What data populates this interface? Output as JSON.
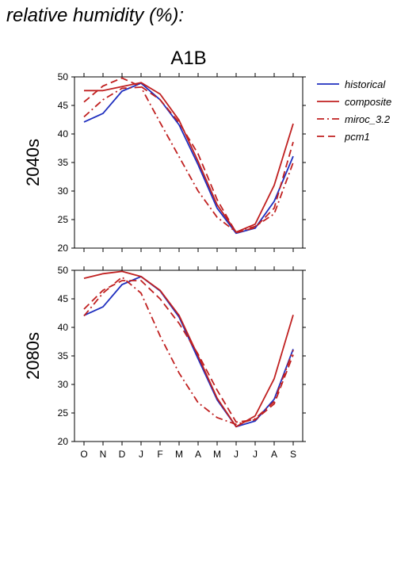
{
  "figure_title": "relative humidity (%):",
  "panel_header": "A1B",
  "chart_data": [
    {
      "type": "line",
      "title": "A1B",
      "ylabel": "2040s",
      "xlabel": "",
      "categories": [
        "O",
        "N",
        "D",
        "J",
        "F",
        "M",
        "A",
        "M",
        "J",
        "J",
        "A",
        "S"
      ],
      "ylim": [
        20,
        50
      ],
      "yticks": [
        20,
        25,
        30,
        35,
        40,
        45,
        50
      ],
      "grid": false,
      "legend": "right",
      "series": [
        {
          "name": "historical",
          "color": "#1f2fbf",
          "dash": "solid",
          "values": [
            42.1,
            43.6,
            47.5,
            48.9,
            46.0,
            41.6,
            34.6,
            27.0,
            22.6,
            23.5,
            28.2,
            36.1
          ]
        },
        {
          "name": "composite",
          "color": "#c02020",
          "dash": "solid",
          "values": [
            47.6,
            47.6,
            48.3,
            49.0,
            47.0,
            42.4,
            35.2,
            27.6,
            22.8,
            24.2,
            31.0,
            41.8
          ]
        },
        {
          "name": "miroc_3.2",
          "color": "#c02020",
          "dash": "dashdot",
          "values": [
            43.0,
            46.0,
            48.0,
            48.2,
            42.0,
            36.0,
            30.0,
            25.4,
            22.8,
            23.8,
            26.0,
            35.0
          ]
        },
        {
          "name": "pcm1",
          "color": "#c02020",
          "dash": "dash",
          "values": [
            45.6,
            48.4,
            49.8,
            48.3,
            46.0,
            42.0,
            36.5,
            28.5,
            22.7,
            23.6,
            27.0,
            38.6
          ]
        }
      ]
    },
    {
      "type": "line",
      "title": "",
      "ylabel": "2080s",
      "xlabel": "",
      "categories": [
        "O",
        "N",
        "D",
        "J",
        "F",
        "M",
        "A",
        "M",
        "J",
        "J",
        "A",
        "S"
      ],
      "ylim": [
        20,
        50
      ],
      "yticks": [
        20,
        25,
        30,
        35,
        40,
        45,
        50
      ],
      "grid": false,
      "legend": "none",
      "series": [
        {
          "name": "historical",
          "color": "#1f2fbf",
          "dash": "solid",
          "values": [
            42.1,
            43.6,
            47.5,
            48.9,
            46.4,
            41.8,
            34.5,
            27.3,
            22.6,
            23.6,
            27.4,
            36.2
          ]
        },
        {
          "name": "composite",
          "color": "#c02020",
          "dash": "solid",
          "values": [
            48.6,
            49.4,
            49.8,
            48.9,
            46.5,
            42.1,
            35.0,
            27.6,
            22.6,
            24.5,
            31.0,
            42.2
          ]
        },
        {
          "name": "miroc_3.2",
          "color": "#c02020",
          "dash": "dashdot",
          "values": [
            42.0,
            46.0,
            48.8,
            46.0,
            38.5,
            32.0,
            26.8,
            24.2,
            23.0,
            24.0,
            27.0,
            36.0
          ]
        },
        {
          "name": "pcm1",
          "color": "#c02020",
          "dash": "dash",
          "values": [
            43.2,
            46.5,
            48.2,
            48.2,
            45.0,
            40.7,
            35.3,
            29.0,
            23.4,
            23.8,
            26.6,
            35.2
          ]
        }
      ]
    }
  ]
}
